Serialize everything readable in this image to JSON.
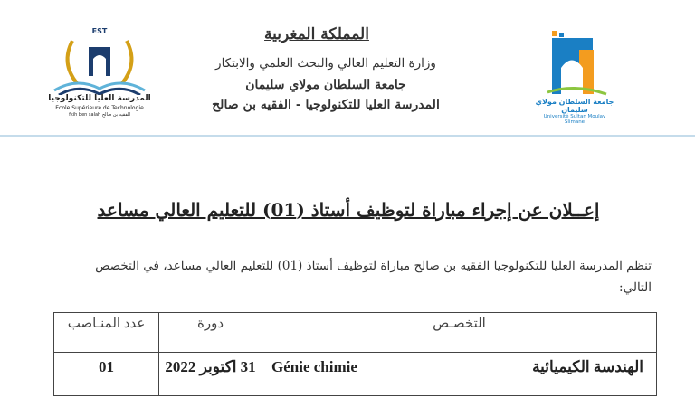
{
  "header": {
    "kingdom": "المملكة المغربية",
    "ministry": "وزارة التعليم العالي والبحث العلمي والابتكار",
    "university": "جامعة السلطان مولاي سليمان",
    "school": "المدرسة العليا للتكنولوجيا - الفقيه بن صالح",
    "left_logo": {
      "top": "EST",
      "arabic": "المدرسة العليا للتكنولوجيا",
      "french": "Ecole Supérieure de Technologie",
      "bottom": "fkih ben salah الفقيه بن صالح"
    },
    "right_logo": {
      "arabic": "جامعة السلطان مولاي سليمان",
      "latin": "Université Sultan Moulay Slimane",
      "colors": [
        "#1a7fc4",
        "#f39c1f",
        "#8cc63f"
      ]
    }
  },
  "title": "إعــلان عن إجراء مباراة لتوظيف أستاذ (01) للتعليم العالي مساعد",
  "intro": "تنظم المدرسة العليا للتكنولوجيا الفقيه بن صالح مباراة لتوظيف أستاذ (01) للتعليم العالي مساعد، في التخصص التالي:",
  "table": {
    "headers": [
      "التخصـص",
      "دورة",
      "عدد المنـاصب"
    ],
    "rows": [
      {
        "specialty_ar": "الهندسة الكيميائية",
        "specialty_fr": "Génie chimie",
        "date": "31 اكتوبر 2022",
        "count": "01"
      }
    ]
  }
}
